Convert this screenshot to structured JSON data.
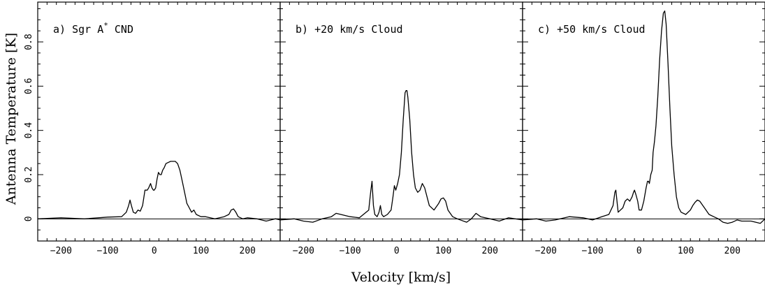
{
  "chart_data": {
    "type": "line",
    "xlabel": "Velocity [km/s]",
    "ylabel": "Antenna Temperature [K]",
    "xlim": [
      -250,
      270
    ],
    "ylim": [
      -0.1,
      0.98
    ],
    "xticks": [
      -200,
      -100,
      0,
      100,
      200
    ],
    "xtick_labels": [
      "−200",
      "−100",
      "0",
      "100",
      "200"
    ],
    "yticks": [
      0,
      0.2,
      0.4,
      0.6,
      0.8
    ],
    "ytick_labels": [
      "0",
      "0.2",
      "0.4",
      "0.6",
      "0.8"
    ],
    "zero_line": true,
    "panels": [
      {
        "title_prefix": "a) Sgr A",
        "title_sup": "*",
        "title_suffix": " CND",
        "series": [
          {
            "x": [
              -250,
              -200,
              -150,
              -100,
              -70,
              -60,
              -55,
              -52,
              -49,
              -45,
              -40,
              -35,
              -30,
              -25,
              -20,
              -15,
              -12,
              -10,
              -8,
              -5,
              -2,
              0,
              3,
              6,
              9,
              12,
              15,
              18,
              21,
              25,
              30,
              35,
              40,
              45,
              50,
              55,
              60,
              65,
              70,
              75,
              80,
              85,
              90,
              100,
              110,
              120,
              130,
              150,
              160,
              165,
              170,
              175,
              180,
              190,
              200,
              220,
              240,
              260,
              270
            ],
            "y": [
              0,
              0.005,
              0,
              0.008,
              0.01,
              0.03,
              0.06,
              0.085,
              0.06,
              0.03,
              0.025,
              0.04,
              0.035,
              0.06,
              0.13,
              0.13,
              0.14,
              0.15,
              0.16,
              0.14,
              0.13,
              0.13,
              0.14,
              0.18,
              0.21,
              0.2,
              0.2,
              0.22,
              0.23,
              0.25,
              0.255,
              0.26,
              0.26,
              0.26,
              0.25,
              0.22,
              0.17,
              0.12,
              0.07,
              0.05,
              0.03,
              0.04,
              0.02,
              0.01,
              0.01,
              0.005,
              0,
              0.01,
              0.02,
              0.04,
              0.045,
              0.03,
              0.01,
              0,
              0.005,
              0,
              -0.01,
              0,
              -0.005
            ]
          }
        ]
      },
      {
        "title_prefix": "b) +20 km/s Cloud",
        "title_sup": "",
        "title_suffix": "",
        "series": [
          {
            "x": [
              -250,
              -220,
              -200,
              -180,
              -160,
              -140,
              -130,
              -120,
              -100,
              -80,
              -60,
              -56,
              -53,
              -50,
              -47,
              -42,
              -38,
              -35,
              -32,
              -28,
              -20,
              -12,
              -8,
              -5,
              -2,
              2,
              6,
              10,
              14,
              18,
              20,
              22,
              24,
              28,
              32,
              36,
              40,
              45,
              50,
              55,
              60,
              65,
              70,
              80,
              90,
              95,
              100,
              105,
              110,
              120,
              130,
              150,
              160,
              170,
              180,
              200,
              220,
              240,
              270
            ],
            "y": [
              -0.005,
              0,
              -0.01,
              -0.015,
              0,
              0.01,
              0.025,
              0.02,
              0.01,
              0.005,
              0.04,
              0.12,
              0.17,
              0.06,
              0.02,
              0.01,
              0.03,
              0.06,
              0.02,
              0.01,
              0.02,
              0.04,
              0.1,
              0.15,
              0.13,
              0.16,
              0.2,
              0.3,
              0.45,
              0.57,
              0.58,
              0.58,
              0.55,
              0.45,
              0.3,
              0.2,
              0.14,
              0.12,
              0.13,
              0.16,
              0.14,
              0.1,
              0.06,
              0.04,
              0.07,
              0.09,
              0.095,
              0.08,
              0.04,
              0.01,
              0,
              -0.015,
              0,
              0.025,
              0.01,
              0,
              -0.01,
              0.005,
              -0.005
            ]
          }
        ]
      },
      {
        "title_prefix": "c) +50 km/s Cloud",
        "title_sup": "",
        "title_suffix": "",
        "series": [
          {
            "x": [
              -250,
              -220,
              -200,
              -180,
              -150,
              -120,
              -100,
              -80,
              -65,
              -56,
              -52,
              -50,
              -48,
              -45,
              -40,
              -35,
              -30,
              -25,
              -20,
              -15,
              -12,
              -10,
              -7,
              -3,
              0,
              5,
              10,
              15,
              18,
              20,
              22,
              25,
              28,
              30,
              33,
              36,
              40,
              44,
              48,
              52,
              55,
              58,
              62,
              66,
              70,
              75,
              80,
              85,
              90,
              100,
              110,
              115,
              120,
              125,
              130,
              140,
              150,
              160,
              170,
              180,
              190,
              200,
              210,
              220,
              240,
              260,
              270
            ],
            "y": [
              -0.005,
              0,
              -0.01,
              -0.005,
              0.01,
              0.005,
              -0.005,
              0.01,
              0.02,
              0.06,
              0.12,
              0.13,
              0.09,
              0.03,
              0.04,
              0.05,
              0.08,
              0.09,
              0.08,
              0.1,
              0.12,
              0.13,
              0.11,
              0.08,
              0.04,
              0.04,
              0.08,
              0.14,
              0.17,
              0.17,
              0.16,
              0.2,
              0.22,
              0.3,
              0.35,
              0.42,
              0.55,
              0.72,
              0.85,
              0.93,
              0.94,
              0.88,
              0.7,
              0.5,
              0.33,
              0.2,
              0.1,
              0.05,
              0.03,
              0.02,
              0.04,
              0.06,
              0.075,
              0.085,
              0.08,
              0.05,
              0.02,
              0.01,
              0,
              -0.015,
              -0.02,
              -0.015,
              -0.005,
              -0.01,
              -0.01,
              -0.02,
              0
            ]
          }
        ]
      }
    ]
  }
}
